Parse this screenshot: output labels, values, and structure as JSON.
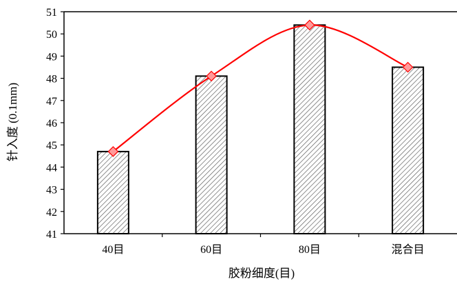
{
  "chart_data": {
    "type": "bar",
    "categories": [
      "40目",
      "60目",
      "80目",
      "混合目"
    ],
    "series": [
      {
        "values": [
          44.7,
          48.1,
          50.4,
          48.5
        ]
      }
    ],
    "overlay_line": {
      "values": [
        44.7,
        48.1,
        50.4,
        48.5
      ],
      "style": "smooth",
      "marker": "diamond",
      "color": "#ff0000"
    },
    "title": "",
    "xlabel": "胶粉细度(目)",
    "ylabel": "针入度 (0.1mm)",
    "ylim": [
      41,
      51
    ],
    "yticks": [
      41,
      42,
      43,
      44,
      45,
      46,
      47,
      48,
      49,
      50,
      51
    ],
    "grid": false,
    "bar_pattern": "diagonal-hatch",
    "colors": {
      "bar_fill": "#ffffff",
      "bar_hatch": "#555555",
      "bar_stroke": "#000000",
      "line": "#ff0000",
      "marker": "#ff9a9a"
    }
  }
}
